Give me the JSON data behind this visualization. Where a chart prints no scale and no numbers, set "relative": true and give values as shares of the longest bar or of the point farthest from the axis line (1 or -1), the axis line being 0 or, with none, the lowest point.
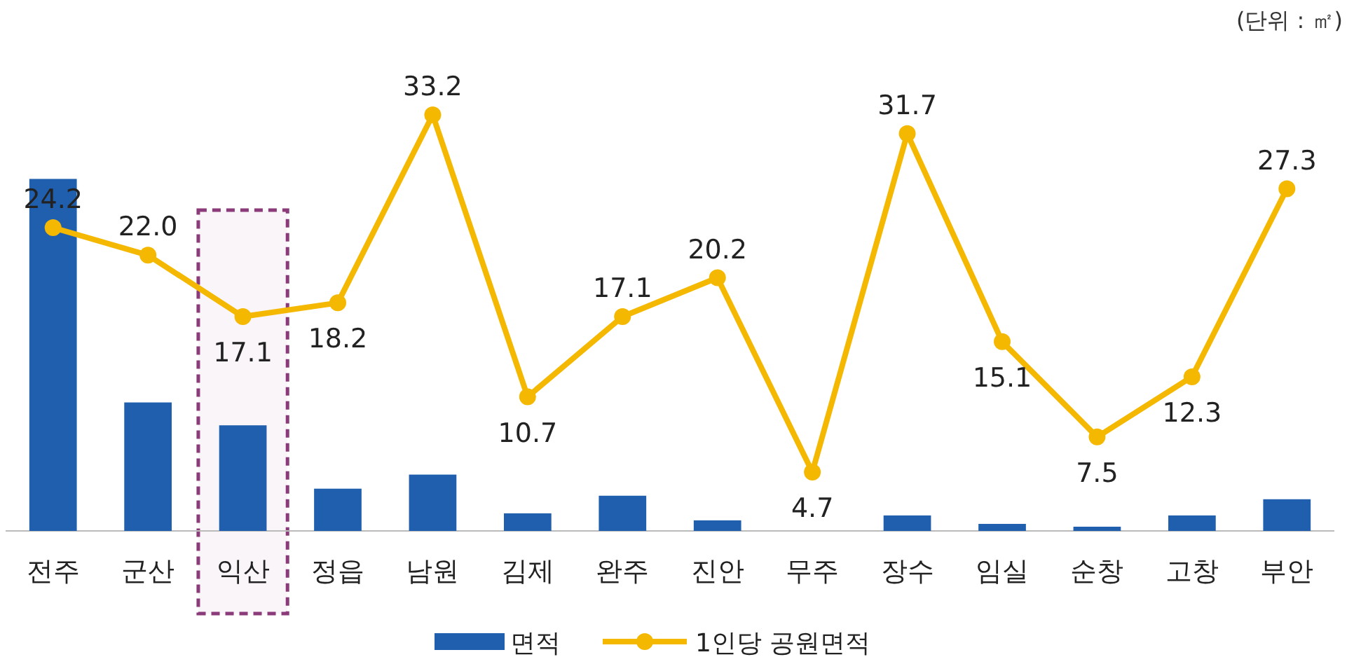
{
  "chart_data": [
    {
      "type": "bar",
      "relative": true,
      "categories": [
        "전주",
        "군산",
        "익산",
        "정읍",
        "남원",
        "김제",
        "완주",
        "진안",
        "무주",
        "장수",
        "임실",
        "순창",
        "고창",
        "부안"
      ],
      "series": [
        {
          "name": "면적",
          "color": "#1f5fad",
          "values": [
            1,
            0.365,
            0.3,
            0.12,
            0.16,
            0.05,
            0.1,
            0.03,
            0,
            0.044,
            0.02,
            0.012,
            0.044,
            0.09
          ]
        }
      ],
      "bands": [
        {
          "axis": "x",
          "from": "익산",
          "to": "익산",
          "color": "#8b3a7a"
        }
      ],
      "annotations": [
        "(단위 : ㎡)"
      ],
      "legend": "bottom"
    },
    {
      "type": "line",
      "categories": [
        null,
        null,
        null,
        null,
        null,
        null,
        null,
        null,
        null,
        null,
        null,
        null,
        null,
        null
      ],
      "series": [
        {
          "name": "1인당 공원면적",
          "color": "#f5b800",
          "values": [
            24.2,
            22.0,
            17.1,
            18.2,
            33.2,
            10.7,
            17.1,
            20.2,
            4.7,
            31.7,
            15.1,
            7.5,
            12.3,
            27.3
          ],
          "value_labels": [
            "24.2",
            "22.0",
            "17.1",
            "18.2",
            "33.2",
            "10.7",
            "17.1",
            "20.2",
            "4.7",
            "31.7",
            "15.1",
            "7.5",
            "12.3",
            "27.3"
          ]
        }
      ],
      "marker": "circle",
      "legend": "bottom"
    }
  ]
}
